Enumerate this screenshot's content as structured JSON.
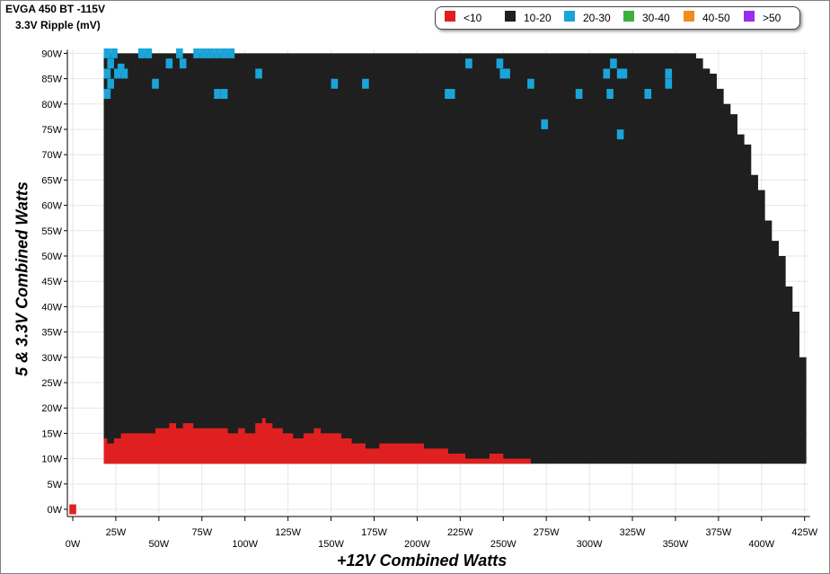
{
  "title": "EVGA 450 BT -115V",
  "subtitle": "3.3V Ripple (mV)",
  "legend": [
    {
      "label": "<10",
      "color": "#e02020"
    },
    {
      "label": "10-20",
      "color": "#1f1f1f"
    },
    {
      "label": "20-30",
      "color": "#1aa4d8"
    },
    {
      "label": "30-40",
      "color": "#3cb03c"
    },
    {
      "label": "40-50",
      "color": "#f08c1c"
    },
    {
      "label": ">50",
      "color": "#9a2cf0"
    }
  ],
  "chart_data": {
    "type": "heatmap",
    "title": "EVGA 450 BT -115V",
    "subtitle": "3.3V Ripple (mV)",
    "xlabel": "+12V Combined Watts",
    "ylabel": "5 & 3.3V Combined Watts",
    "xlim": [
      0,
      425
    ],
    "ylim": [
      0,
      90
    ],
    "x_ticks": [
      "0W",
      "25W",
      "50W",
      "75W",
      "100W",
      "125W",
      "150W",
      "175W",
      "200W",
      "225W",
      "250W",
      "275W",
      "300W",
      "325W",
      "350W",
      "375W",
      "400W",
      "425W"
    ],
    "y_ticks": [
      "0W",
      "5W",
      "10W",
      "15W",
      "20W",
      "25W",
      "30W",
      "35W",
      "40W",
      "45W",
      "50W",
      "55W",
      "60W",
      "65W",
      "70W",
      "75W",
      "80W",
      "85W",
      "90W"
    ],
    "grid": true,
    "legend_position": "top-right",
    "default_band": "10-20",
    "region": {
      "x_from": 18,
      "y_from": 9,
      "upper_boundary": [
        {
          "x": 18,
          "y": 90
        },
        {
          "x": 360,
          "y": 90
        },
        {
          "x": 362,
          "y": 89
        },
        {
          "x": 366,
          "y": 87
        },
        {
          "x": 370,
          "y": 86
        },
        {
          "x": 374,
          "y": 83
        },
        {
          "x": 378,
          "y": 80
        },
        {
          "x": 382,
          "y": 78
        },
        {
          "x": 386,
          "y": 74
        },
        {
          "x": 390,
          "y": 72
        },
        {
          "x": 394,
          "y": 66
        },
        {
          "x": 398,
          "y": 63
        },
        {
          "x": 402,
          "y": 57
        },
        {
          "x": 406,
          "y": 53
        },
        {
          "x": 410,
          "y": 50
        },
        {
          "x": 414,
          "y": 44
        },
        {
          "x": 418,
          "y": 39
        },
        {
          "x": 422,
          "y": 30
        },
        {
          "x": 426,
          "y": 27
        }
      ]
    },
    "bands": {
      "<10": {
        "top_profile": [
          {
            "x": 18,
            "y": 14
          },
          {
            "x": 20,
            "y": 13
          },
          {
            "x": 24,
            "y": 14
          },
          {
            "x": 28,
            "y": 15
          },
          {
            "x": 32,
            "y": 15
          },
          {
            "x": 40,
            "y": 15
          },
          {
            "x": 48,
            "y": 16
          },
          {
            "x": 52,
            "y": 16
          },
          {
            "x": 56,
            "y": 17
          },
          {
            "x": 60,
            "y": 16
          },
          {
            "x": 64,
            "y": 17
          },
          {
            "x": 70,
            "y": 16
          },
          {
            "x": 90,
            "y": 15
          },
          {
            "x": 96,
            "y": 16
          },
          {
            "x": 100,
            "y": 15
          },
          {
            "x": 106,
            "y": 17
          },
          {
            "x": 110,
            "y": 18
          },
          {
            "x": 112,
            "y": 17
          },
          {
            "x": 116,
            "y": 16
          },
          {
            "x": 122,
            "y": 15
          },
          {
            "x": 128,
            "y": 14
          },
          {
            "x": 134,
            "y": 15
          },
          {
            "x": 140,
            "y": 16
          },
          {
            "x": 144,
            "y": 15
          },
          {
            "x": 150,
            "y": 15
          },
          {
            "x": 156,
            "y": 14
          },
          {
            "x": 162,
            "y": 13
          },
          {
            "x": 170,
            "y": 12
          },
          {
            "x": 178,
            "y": 13
          },
          {
            "x": 204,
            "y": 12
          },
          {
            "x": 218,
            "y": 11
          },
          {
            "x": 228,
            "y": 10
          },
          {
            "x": 242,
            "y": 11
          },
          {
            "x": 250,
            "y": 10
          },
          {
            "x": 266,
            "y": 9
          }
        ],
        "cells": [
          {
            "x": 0,
            "y": 0
          }
        ]
      },
      "20-30": {
        "cells": [
          {
            "x": 20,
            "y": 82
          },
          {
            "x": 22,
            "y": 84
          },
          {
            "x": 20,
            "y": 86
          },
          {
            "x": 22,
            "y": 88
          },
          {
            "x": 24,
            "y": 90
          },
          {
            "x": 20,
            "y": 90
          },
          {
            "x": 26,
            "y": 86
          },
          {
            "x": 28,
            "y": 87
          },
          {
            "x": 30,
            "y": 86
          },
          {
            "x": 40,
            "y": 90
          },
          {
            "x": 44,
            "y": 90
          },
          {
            "x": 48,
            "y": 84
          },
          {
            "x": 56,
            "y": 88
          },
          {
            "x": 62,
            "y": 90
          },
          {
            "x": 64,
            "y": 88
          },
          {
            "x": 72,
            "y": 90
          },
          {
            "x": 76,
            "y": 90
          },
          {
            "x": 80,
            "y": 90
          },
          {
            "x": 84,
            "y": 90
          },
          {
            "x": 88,
            "y": 90
          },
          {
            "x": 92,
            "y": 90
          },
          {
            "x": 84,
            "y": 82
          },
          {
            "x": 88,
            "y": 82
          },
          {
            "x": 108,
            "y": 86
          },
          {
            "x": 152,
            "y": 84
          },
          {
            "x": 170,
            "y": 84
          },
          {
            "x": 218,
            "y": 82
          },
          {
            "x": 220,
            "y": 82
          },
          {
            "x": 230,
            "y": 88
          },
          {
            "x": 248,
            "y": 88
          },
          {
            "x": 250,
            "y": 86
          },
          {
            "x": 252,
            "y": 86
          },
          {
            "x": 266,
            "y": 84
          },
          {
            "x": 274,
            "y": 76
          },
          {
            "x": 294,
            "y": 82
          },
          {
            "x": 310,
            "y": 86
          },
          {
            "x": 312,
            "y": 82
          },
          {
            "x": 314,
            "y": 88
          },
          {
            "x": 318,
            "y": 86
          },
          {
            "x": 320,
            "y": 86
          },
          {
            "x": 318,
            "y": 74
          },
          {
            "x": 334,
            "y": 82
          },
          {
            "x": 346,
            "y": 86
          },
          {
            "x": 346,
            "y": 84
          }
        ]
      },
      "30-40": {
        "cells": []
      },
      "40-50": {
        "cells": []
      },
      ">50": {
        "cells": []
      }
    }
  }
}
